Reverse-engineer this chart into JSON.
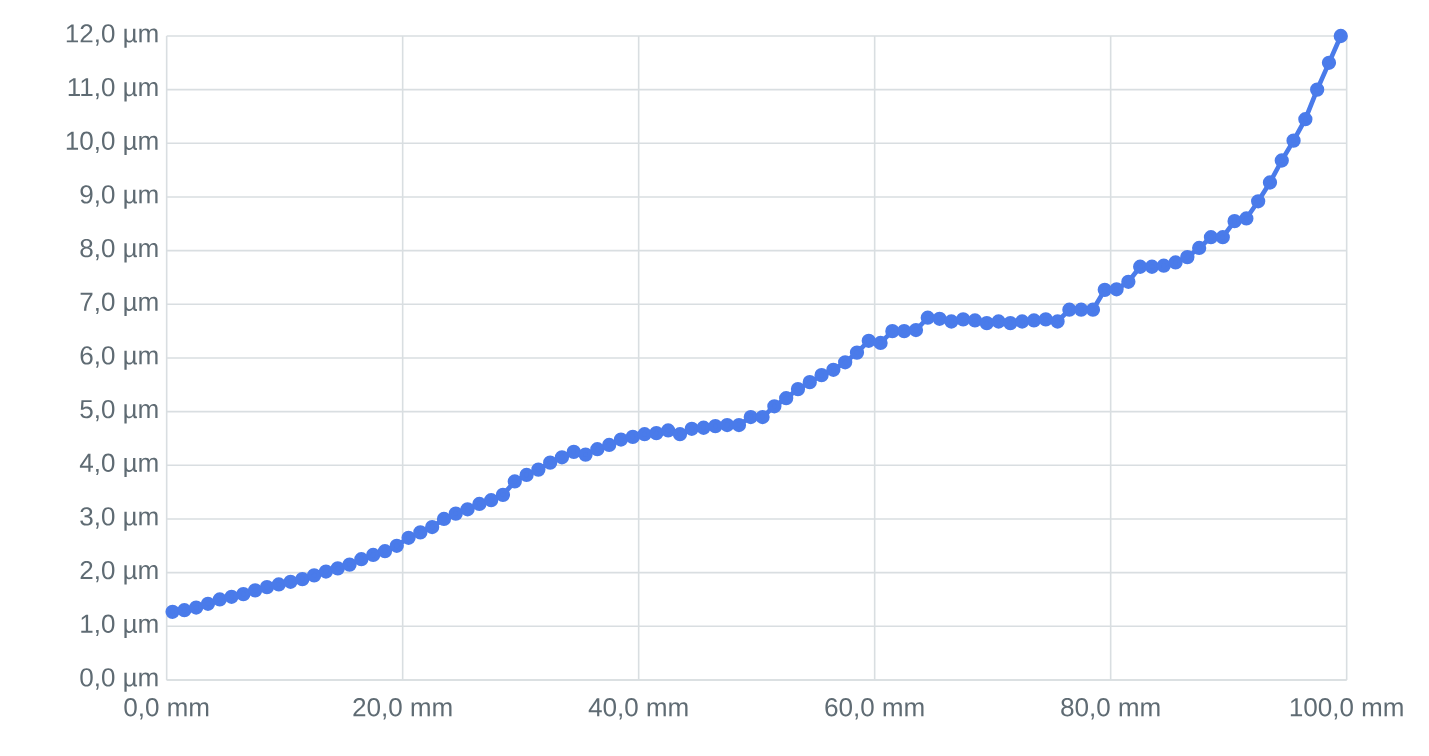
{
  "chart_data": {
    "type": "line",
    "marker": "circle",
    "grid": true,
    "xlim": [
      0,
      100
    ],
    "ylim": [
      0,
      12
    ],
    "xticks": [
      {
        "value": 0,
        "label": "0,0 mm"
      },
      {
        "value": 20,
        "label": "20,0 mm"
      },
      {
        "value": 40,
        "label": "40,0 mm"
      },
      {
        "value": 60,
        "label": "60,0 mm"
      },
      {
        "value": 80,
        "label": "80,0 mm"
      },
      {
        "value": 100,
        "label": "100,0 mm"
      }
    ],
    "yticks": [
      {
        "value": 0,
        "label": "0,0 µm"
      },
      {
        "value": 1,
        "label": "1,0 µm"
      },
      {
        "value": 2,
        "label": "2,0 µm"
      },
      {
        "value": 3,
        "label": "3,0 µm"
      },
      {
        "value": 4,
        "label": "4,0 µm"
      },
      {
        "value": 5,
        "label": "5,0 µm"
      },
      {
        "value": 6,
        "label": "6,0 µm"
      },
      {
        "value": 7,
        "label": "7,0 µm"
      },
      {
        "value": 8,
        "label": "8,0 µm"
      },
      {
        "value": 9,
        "label": "9,0 µm"
      },
      {
        "value": 10,
        "label": "10,0 µm"
      },
      {
        "value": 11,
        "label": "11,0 µm"
      },
      {
        "value": 12,
        "label": "12,0 µm"
      }
    ],
    "series": [
      {
        "color": "#4a7bea",
        "x": [
          0.5,
          1.5,
          2.5,
          3.5,
          4.5,
          5.5,
          6.5,
          7.5,
          8.5,
          9.5,
          10.5,
          11.5,
          12.5,
          13.5,
          14.5,
          15.5,
          16.5,
          17.5,
          18.5,
          19.5,
          20.5,
          21.5,
          22.5,
          23.5,
          24.5,
          25.5,
          26.5,
          27.5,
          28.5,
          29.5,
          30.5,
          31.5,
          32.5,
          33.5,
          34.5,
          35.5,
          36.5,
          37.5,
          38.5,
          39.5,
          40.5,
          41.5,
          42.5,
          43.5,
          44.5,
          45.5,
          46.5,
          47.5,
          48.5,
          49.5,
          50.5,
          51.5,
          52.5,
          53.5,
          54.5,
          55.5,
          56.5,
          57.5,
          58.5,
          59.5,
          60.5,
          61.5,
          62.5,
          63.5,
          64.5,
          65.5,
          66.5,
          67.5,
          68.5,
          69.5,
          70.5,
          71.5,
          72.5,
          73.5,
          74.5,
          75.5,
          76.5,
          77.5,
          78.5,
          79.5,
          80.5,
          81.5,
          82.5,
          83.5,
          84.5,
          85.5,
          86.5,
          87.5,
          88.5,
          89.5,
          90.5,
          91.5,
          92.5,
          93.5,
          94.5,
          95.5,
          96.5,
          97.5,
          98.5,
          99.5
        ],
        "values": [
          1.27,
          1.3,
          1.35,
          1.42,
          1.5,
          1.55,
          1.6,
          1.67,
          1.73,
          1.78,
          1.83,
          1.88,
          1.95,
          2.02,
          2.08,
          2.15,
          2.25,
          2.33,
          2.4,
          2.5,
          2.65,
          2.75,
          2.85,
          3.0,
          3.1,
          3.18,
          3.28,
          3.35,
          3.45,
          3.7,
          3.82,
          3.92,
          4.05,
          4.15,
          4.25,
          4.2,
          4.3,
          4.38,
          4.48,
          4.53,
          4.58,
          4.6,
          4.65,
          4.58,
          4.68,
          4.7,
          4.73,
          4.75,
          4.75,
          4.9,
          4.9,
          5.1,
          5.25,
          5.42,
          5.55,
          5.68,
          5.78,
          5.92,
          6.1,
          6.32,
          6.28,
          6.5,
          6.5,
          6.52,
          6.75,
          6.73,
          6.68,
          6.72,
          6.7,
          6.65,
          6.68,
          6.65,
          6.68,
          6.7,
          6.72,
          6.68,
          6.9,
          6.9,
          6.9,
          7.27,
          7.28,
          7.42,
          7.7,
          7.7,
          7.72,
          7.78,
          7.88,
          8.05,
          8.25,
          8.25,
          8.55,
          8.6,
          8.92,
          9.27,
          9.68,
          10.05,
          10.45,
          11.0,
          11.5,
          12.0
        ]
      }
    ]
  }
}
